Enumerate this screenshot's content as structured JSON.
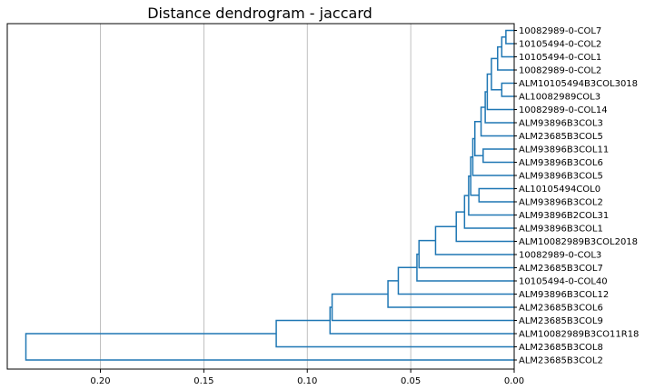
{
  "chart_data": {
    "type": "dendrogram",
    "title": "Distance dendrogram - jaccard",
    "orientation": "left",
    "xlim": [
      0.245,
      0.0
    ],
    "x_ticks": [
      0.2,
      0.15,
      0.1,
      0.05,
      0.0
    ],
    "x_tick_labels": [
      "0.20",
      "0.15",
      "0.10",
      "0.05",
      "0.00"
    ],
    "grid": "vertical",
    "colors": {
      "link": "#1f77b4",
      "grid": "#b0b0b0",
      "axes": "#000000"
    },
    "leaves": [
      "10082989-0-COL7",
      "10105494-0-COL2",
      "10105494-0-COL1",
      "10082989-0-COL2",
      "ALM10105494B3COL3018",
      "AL10082989COL3",
      "10082989-0-COL14",
      "ALM93896B3COL3",
      "ALM23685B3COL5",
      "ALM93896B3COL11",
      "ALM93896B3COL6",
      "ALM93896B3COL5",
      "AL10105494COL0",
      "ALM93896B3COL2",
      "ALM93896B2COL31",
      "ALM93896B3COL1",
      "ALM10082989B3COL2018",
      "10082989-0-COL3",
      "ALM23685B3COL7",
      "10105494-0-COL40",
      "ALM93896B3COL12",
      "ALM23685B3COL6",
      "ALM23685B3COL9",
      "ALM10082989B3CO11R18",
      "ALM23685B3COL8",
      "ALM23685B3COL2"
    ],
    "merges": [
      {
        "id": "n1",
        "children": [
          "L0",
          "L1"
        ],
        "distance": 0.004
      },
      {
        "id": "n2",
        "children": [
          "n1",
          "L2"
        ],
        "distance": 0.006
      },
      {
        "id": "n3",
        "children": [
          "n2",
          "L3"
        ],
        "distance": 0.008
      },
      {
        "id": "n4",
        "children": [
          "L4",
          "L5"
        ],
        "distance": 0.006
      },
      {
        "id": "n5",
        "children": [
          "n3",
          "n4"
        ],
        "distance": 0.011
      },
      {
        "id": "n6",
        "children": [
          "n5",
          "L6"
        ],
        "distance": 0.013
      },
      {
        "id": "n7",
        "children": [
          "n6",
          "L7"
        ],
        "distance": 0.014
      },
      {
        "id": "n8",
        "children": [
          "n7",
          "L8"
        ],
        "distance": 0.016
      },
      {
        "id": "n9",
        "children": [
          "L9",
          "L10"
        ],
        "distance": 0.015
      },
      {
        "id": "n10",
        "children": [
          "n8",
          "n9"
        ],
        "distance": 0.019
      },
      {
        "id": "n11",
        "children": [
          "n10",
          "L11"
        ],
        "distance": 0.02
      },
      {
        "id": "n12",
        "children": [
          "L12",
          "L13"
        ],
        "distance": 0.017
      },
      {
        "id": "n13",
        "children": [
          "n11",
          "n12"
        ],
        "distance": 0.021
      },
      {
        "id": "n14",
        "children": [
          "n13",
          "L14"
        ],
        "distance": 0.022
      },
      {
        "id": "n15",
        "children": [
          "n14",
          "L15"
        ],
        "distance": 0.024
      },
      {
        "id": "n16",
        "children": [
          "n15",
          "L16"
        ],
        "distance": 0.028
      },
      {
        "id": "n17",
        "children": [
          "n16",
          "L17"
        ],
        "distance": 0.038
      },
      {
        "id": "n18",
        "children": [
          "n17",
          "L18"
        ],
        "distance": 0.046
      },
      {
        "id": "n19",
        "children": [
          "n18",
          "L19"
        ],
        "distance": 0.047
      },
      {
        "id": "n20",
        "children": [
          "n19",
          "L20"
        ],
        "distance": 0.056
      },
      {
        "id": "n21",
        "children": [
          "n20",
          "L21"
        ],
        "distance": 0.061
      },
      {
        "id": "n22",
        "children": [
          "n21",
          "L22"
        ],
        "distance": 0.088
      },
      {
        "id": "n23",
        "children": [
          "n22",
          "L23"
        ],
        "distance": 0.089
      },
      {
        "id": "n24",
        "children": [
          "n23",
          "L24"
        ],
        "distance": 0.115
      },
      {
        "id": "n25",
        "children": [
          "n24",
          "L25"
        ],
        "distance": 0.236
      }
    ]
  }
}
